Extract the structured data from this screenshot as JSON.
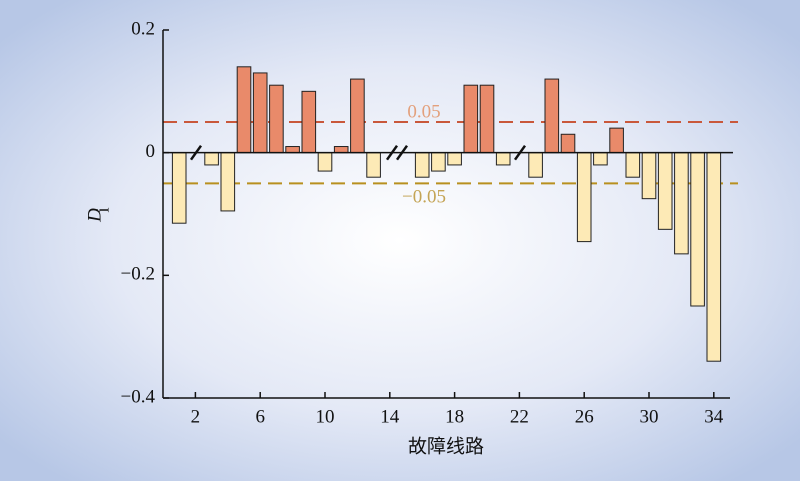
{
  "chart_data": {
    "type": "bar",
    "x_label": "故障线路",
    "y_label": {
      "main": "D",
      "sub": "i"
    },
    "x": [
      1,
      2,
      3,
      4,
      5,
      6,
      7,
      8,
      9,
      10,
      11,
      12,
      13,
      14,
      15,
      16,
      17,
      18,
      19,
      20,
      21,
      22,
      23,
      24,
      25,
      26,
      27,
      28,
      29,
      30,
      31,
      32,
      33,
      34
    ],
    "values": [
      -0.115,
      null,
      -0.02,
      -0.095,
      0.14,
      0.13,
      0.11,
      0.01,
      0.1,
      -0.03,
      0.01,
      0.12,
      -0.04,
      null,
      null,
      -0.04,
      -0.03,
      -0.02,
      0.11,
      0.11,
      -0.02,
      null,
      -0.04,
      0.12,
      0.03,
      -0.145,
      -0.02,
      0.04,
      -0.04,
      -0.075,
      -0.125,
      -0.165,
      -0.25,
      -0.34
    ],
    "positive_color": "#e98a6a",
    "negative_color": "#fdeab6",
    "xlim": [
      0,
      35
    ],
    "xticks": [
      2,
      6,
      10,
      14,
      18,
      22,
      26,
      30,
      34
    ],
    "ylim": [
      -0.4,
      0.2
    ],
    "yticks": [
      0.2,
      0,
      {
        "value": -0.2,
        "label": "−0.2"
      },
      {
        "value": -0.4,
        "label": "−0.4"
      }
    ],
    "thresholds": [
      {
        "value": 0.05,
        "label": "0.05",
        "color": "#c9583b",
        "label_color": "#e3a07c"
      },
      {
        "value": -0.05,
        "label": "−0.05",
        "color": "#b8901f",
        "label_color": "#c4a455"
      }
    ]
  }
}
